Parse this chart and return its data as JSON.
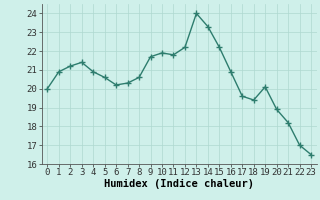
{
  "x": [
    0,
    1,
    2,
    3,
    4,
    5,
    6,
    7,
    8,
    9,
    10,
    11,
    12,
    13,
    14,
    15,
    16,
    17,
    18,
    19,
    20,
    21,
    22,
    23
  ],
  "y": [
    20.0,
    20.9,
    21.2,
    21.4,
    20.9,
    20.6,
    20.2,
    20.3,
    20.6,
    21.7,
    21.9,
    21.8,
    22.2,
    24.0,
    23.3,
    22.2,
    20.9,
    19.6,
    19.4,
    20.1,
    18.9,
    18.2,
    17.0,
    16.5
  ],
  "xlabel": "Humidex (Indice chaleur)",
  "ylim": [
    16,
    24.5
  ],
  "yticks": [
    16,
    17,
    18,
    19,
    20,
    21,
    22,
    23,
    24
  ],
  "xticks": [
    0,
    1,
    2,
    3,
    4,
    5,
    6,
    7,
    8,
    9,
    10,
    11,
    12,
    13,
    14,
    15,
    16,
    17,
    18,
    19,
    20,
    21,
    22,
    23
  ],
  "line_color": "#2e7d6e",
  "marker": "+",
  "bg_color": "#cff0ea",
  "grid_color": "#aed8d0",
  "tick_fontsize": 6.5,
  "xlabel_fontsize": 7.5,
  "line_width": 1.0,
  "marker_size": 4,
  "marker_edge_width": 1.0
}
